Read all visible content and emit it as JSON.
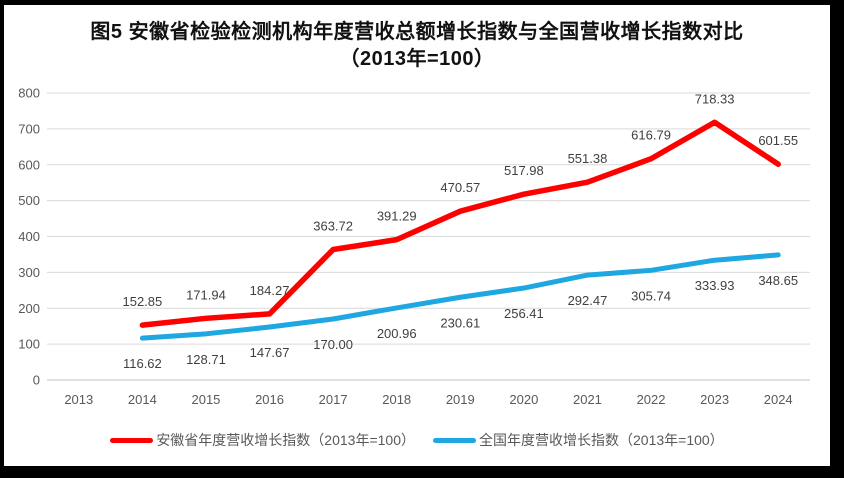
{
  "frame": {
    "border_color": "#000000",
    "background_color": "#FFFFFF"
  },
  "title": {
    "line1": "图5  安徽省检验检测机构年度营收总额增长指数与全国营收增长指数对比",
    "line2": "（2013年=100）"
  },
  "chart_data": {
    "type": "line",
    "title": "图5 安徽省检验检测机构年度营收总额增长指数与全国营收增长指数对比（2013年=100）",
    "categories": [
      "2013",
      "2014",
      "2015",
      "2016",
      "2017",
      "2018",
      "2019",
      "2020",
      "2021",
      "2022",
      "2023",
      "2024"
    ],
    "series": [
      {
        "id": "anhui",
        "name": "安徽省年度营收增长指数（2013年=100）",
        "color": "#FF0000",
        "label_position": "above",
        "values": [
          null,
          152.85,
          171.94,
          184.27,
          363.72,
          391.29,
          470.57,
          517.98,
          551.38,
          616.79,
          718.33,
          601.55
        ]
      },
      {
        "id": "national",
        "name": "全国年度营收增长指数（2013年=100）",
        "color": "#1EA7E1",
        "label_position": "below",
        "values": [
          null,
          116.62,
          128.71,
          147.67,
          170.0,
          200.96,
          230.61,
          256.41,
          292.47,
          305.74,
          333.93,
          348.65
        ]
      }
    ],
    "xlabel": "",
    "ylabel": "",
    "ylim": [
      0,
      800
    ],
    "ytick_step": 100,
    "grid": "horizontal",
    "gridline_color": "#D9D9D9",
    "axis_line_color": "#C3C3C3",
    "axis_label_color": "#595959",
    "data_label_color": "#404040",
    "data_label_decimals": 2,
    "legend_position": "bottom"
  }
}
